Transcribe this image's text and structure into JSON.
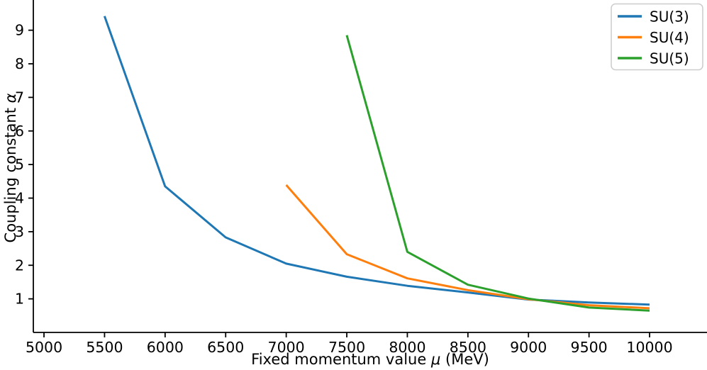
{
  "chart_data": {
    "type": "line",
    "title": "",
    "xlabel": "Fixed momentum value μ (MeV)",
    "ylabel": "Coupling constant α",
    "x_ticks": [
      5000,
      5500,
      6000,
      6500,
      7000,
      7500,
      8000,
      8500,
      9000,
      9500,
      10000
    ],
    "y_ticks": [
      1,
      2,
      3,
      4,
      5,
      6,
      7,
      8,
      9
    ],
    "xlim": [
      4912,
      10474
    ],
    "ylim": [
      0,
      9.9
    ],
    "grid": false,
    "legend": {
      "position": "upper right",
      "entries": [
        "SU(3)",
        "SU(4)",
        "SU(5)"
      ]
    },
    "axis_color": "#000000",
    "background_color": "#ffffff",
    "series": [
      {
        "name": "SU(3)",
        "color": "#1f77b4",
        "x": [
          5500,
          6000,
          6500,
          7000,
          7500,
          8000,
          8500,
          9000,
          9500,
          10000
        ],
        "y": [
          9.42,
          4.35,
          2.83,
          2.05,
          1.66,
          1.39,
          1.19,
          0.98,
          0.89,
          0.83
        ]
      },
      {
        "name": "SU(4)",
        "color": "#ff7f0e",
        "x": [
          7000,
          7500,
          8000,
          8500,
          9000,
          9500,
          10000
        ],
        "y": [
          4.39,
          2.33,
          1.61,
          1.26,
          0.99,
          0.81,
          0.72
        ]
      },
      {
        "name": "SU(5)",
        "color": "#2ca02c",
        "x": [
          7500,
          8000,
          8500,
          9000,
          9500,
          10000
        ],
        "y": [
          8.85,
          2.4,
          1.42,
          1.01,
          0.74,
          0.65
        ]
      }
    ]
  }
}
